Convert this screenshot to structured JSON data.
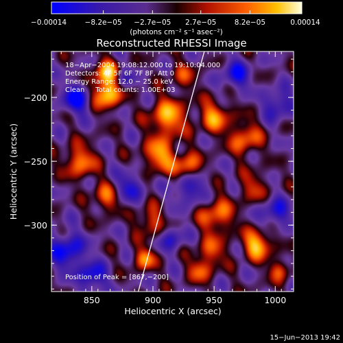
{
  "chart_data": {
    "type": "heatmap",
    "title": "Reconstructed RHESSI Image",
    "xlabel": "Heliocentric X (arcsec)",
    "ylabel": "Heliocentric Y (arcsec)",
    "xlim": [
      817,
      1015
    ],
    "ylim": [
      -352,
      -164
    ],
    "x_ticks": [
      850,
      900,
      950,
      1000
    ],
    "x_tick_labels": [
      "850",
      "900",
      "950",
      "1000"
    ],
    "y_ticks": [
      -200,
      -250,
      -300
    ],
    "y_tick_labels": [
      "−200",
      "−250",
      "−300"
    ],
    "colorbar": {
      "range": [
        -0.00014,
        0.00014
      ],
      "tick_values": [
        -0.00014,
        -8.2e-05,
        -2.7e-05,
        2.7e-05,
        8.2e-05,
        0.00014
      ],
      "tick_labels": [
        "−0.00014",
        "−8.2e−05",
        "−2.7e−05",
        "2.7e−05",
        "8.2e−05",
        "0.00014"
      ],
      "units": "(photons cm⁻² s⁻¹ asec⁻²)"
    },
    "annotations": [
      "18−Apr−2004 19:08:12.000 to 19:10:04.000",
      "Detectors: 4F 5F 6F 7F 8F, Att 0",
      "Energy Range: 12.0 − 25.0 keV",
      "Clean     Total counts: 1.00E+03"
    ],
    "peak_label": "Position of Peak = [867,−200]",
    "limb_line": {
      "x": [
        888,
        942
      ],
      "y": [
        -352,
        -164
      ]
    },
    "bright_sources": [
      {
        "x": 862,
        "y": -197,
        "v": 1.0,
        "r": 8
      },
      {
        "x": 862,
        "y": -180,
        "v": 0.85,
        "r": 7
      },
      {
        "x": 912,
        "y": -215,
        "v": 0.85,
        "r": 10
      },
      {
        "x": 905,
        "y": -245,
        "v": 0.8,
        "r": 9
      },
      {
        "x": 928,
        "y": -255,
        "v": 0.75,
        "r": 8
      },
      {
        "x": 950,
        "y": -215,
        "v": 0.7,
        "r": 9
      },
      {
        "x": 975,
        "y": -232,
        "v": 0.65,
        "r": 9
      },
      {
        "x": 840,
        "y": -250,
        "v": 0.7,
        "r": 9
      },
      {
        "x": 862,
        "y": -278,
        "v": 0.6,
        "r": 8
      },
      {
        "x": 898,
        "y": -297,
        "v": 0.55,
        "r": 8
      },
      {
        "x": 952,
        "y": -292,
        "v": 0.65,
        "r": 10
      },
      {
        "x": 985,
        "y": -315,
        "v": 0.9,
        "r": 8
      },
      {
        "x": 948,
        "y": -320,
        "v": 0.5,
        "r": 8
      },
      {
        "x": 893,
        "y": -326,
        "v": 0.75,
        "r": 6
      },
      {
        "x": 938,
        "y": -335,
        "v": 0.55,
        "r": 7
      },
      {
        "x": 982,
        "y": -270,
        "v": 0.45,
        "r": 8
      },
      {
        "x": 925,
        "y": -183,
        "v": 0.4,
        "r": 8
      },
      {
        "x": 1003,
        "y": -335,
        "v": 0.55,
        "r": 6
      }
    ],
    "dark_sources": [
      {
        "x": 837,
        "y": -201,
        "v": -0.8,
        "r": 8
      },
      {
        "x": 830,
        "y": -320,
        "v": -0.75,
        "r": 10
      },
      {
        "x": 850,
        "y": -340,
        "v": -0.7,
        "r": 8
      },
      {
        "x": 880,
        "y": -270,
        "v": -0.6,
        "r": 8
      },
      {
        "x": 930,
        "y": -270,
        "v": -0.65,
        "r": 9
      },
      {
        "x": 968,
        "y": -182,
        "v": -0.65,
        "r": 8
      },
      {
        "x": 1002,
        "y": -205,
        "v": -0.6,
        "r": 8
      },
      {
        "x": 1000,
        "y": -290,
        "v": -0.6,
        "r": 8
      },
      {
        "x": 915,
        "y": -310,
        "v": -0.5,
        "r": 7
      },
      {
        "x": 875,
        "y": -185,
        "v": -0.4,
        "r": 6
      }
    ]
  },
  "footer": {
    "timestamp": "15−Jun−2013 19:42"
  }
}
